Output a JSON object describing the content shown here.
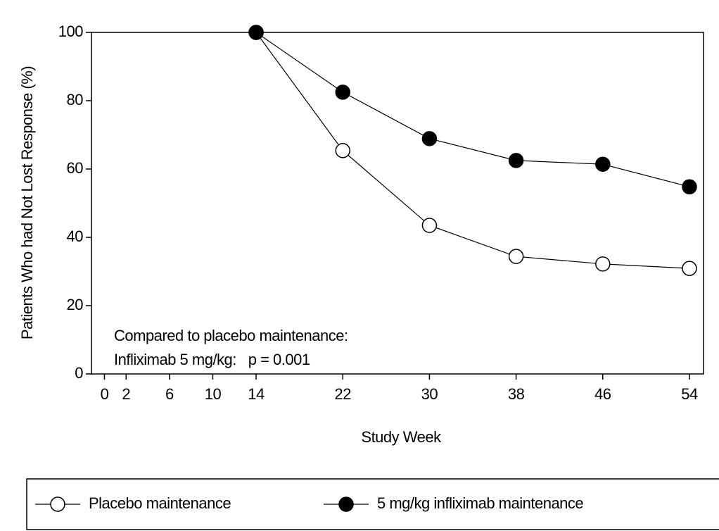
{
  "chart_data": {
    "type": "line",
    "xlabel": "Study Week",
    "ylabel": "Patients Who had Not Lost Response (%)",
    "annotations": [
      "Compared to placebo maintenance:",
      "Infliximab 5 mg/kg:   p = 0.001"
    ],
    "series": [
      {
        "name": "Placebo maintenance",
        "color": "#ffffff",
        "x": [
          14,
          22,
          30,
          38,
          46,
          54
        ],
        "values": [
          100,
          65.4,
          43.5,
          34.4,
          32.2,
          30.9
        ]
      },
      {
        "name": "5 mg/kg infliximab maintenance",
        "color": "#000000",
        "x": [
          14,
          22,
          30,
          38,
          46,
          54
        ],
        "values": [
          100,
          82.5,
          68.9,
          62.5,
          61.4,
          54.8
        ]
      }
    ],
    "xlim": [
      -1.2,
      55.3
    ],
    "xticks": [
      0,
      2,
      6,
      10,
      14,
      22,
      30,
      38,
      46,
      54
    ],
    "ylim": [
      0,
      100
    ],
    "yticks": [
      0,
      20,
      40,
      60,
      80,
      100
    ]
  }
}
